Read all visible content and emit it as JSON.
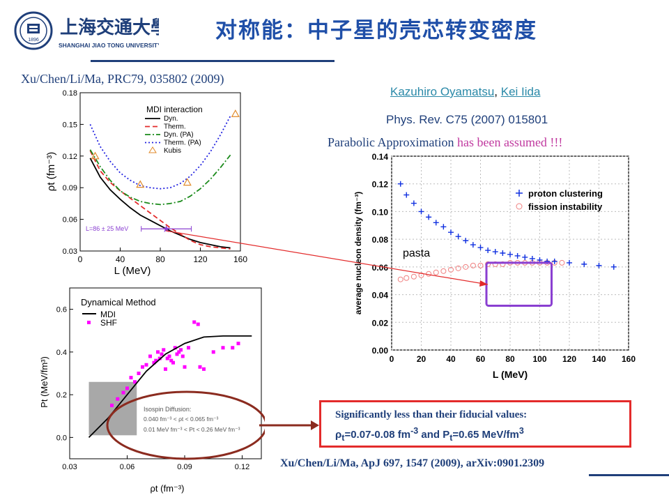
{
  "slide": {
    "title": "对称能：中子星的壳芯转变密度",
    "ref_top": "Xu/Chen/Li/Ma, PRC79, 035802 (2009)",
    "author1": "Kazuhiro Oyamatsu",
    "author_sep": ", ",
    "author2": "Kei Iida",
    "journal": "Phys. Rev. C75 (2007) 015801",
    "parabolic_a": "Parabolic Approximation ",
    "parabolic_b": "has been assumed !!!",
    "callout_l1": "Significantly less than their fiducial values:",
    "callout_l2_rho": "ρ",
    "callout_l2_t": "t",
    "callout_l2_a": "=0.07-0.08 fm",
    "callout_l2_exp": "-3",
    "callout_l2_b": " and P",
    "callout_l2_t2": "t",
    "callout_l2_c": "=0.65 MeV/fm",
    "callout_l2_exp2": "3",
    "ref_bottom": "Xu/Chen/Li/Ma, ApJ 697, 1547 (2009), arXiv:0901.2309",
    "pasta_label": "pasta",
    "logo_cn": "上海交通大學",
    "logo_en": "SHANGHAI JIAO TONG UNIVERSITY",
    "logo_year": "1896"
  },
  "colors": {
    "title": "#1f4fa8",
    "navy": "#1f3f7a",
    "red": "#e32b2b",
    "purple": "#8a3fd1",
    "brown": "#8b2b1f",
    "magenta": "#ff00ff",
    "blue": "#1030e0"
  },
  "chart_data": [
    {
      "type": "line",
      "id": "rho-t-vs-L",
      "xlabel": "L (MeV)",
      "ylabel": "ρt (fm⁻³)",
      "xlim": [
        0,
        160
      ],
      "ylim": [
        0.03,
        0.18
      ],
      "xticks": [
        0,
        40,
        80,
        120,
        160
      ],
      "yticks": [
        0.03,
        0.06,
        0.09,
        0.12,
        0.15,
        0.18
      ],
      "xtick_labels": [
        "0",
        "40",
        "80",
        "120",
        "160"
      ],
      "ytick_labels": [
        "0.03",
        "0.06",
        "0.09",
        "0.12",
        "0.15",
        "0.18"
      ],
      "legend_title": "MDI interaction",
      "legend_position": "top-left",
      "series": [
        {
          "name": "Dyn.",
          "style": "solid",
          "color": "#000000",
          "x": [
            10,
            20,
            30,
            40,
            50,
            60,
            70,
            80,
            90,
            100,
            110,
            120,
            130,
            140,
            150
          ],
          "y": [
            0.118,
            0.1,
            0.088,
            0.079,
            0.071,
            0.064,
            0.059,
            0.054,
            0.049,
            0.045,
            0.041,
            0.038,
            0.036,
            0.034,
            0.033
          ]
        },
        {
          "name": "Therm.",
          "style": "dashed",
          "color": "#e32b2b",
          "x": [
            10,
            20,
            30,
            40,
            50,
            60,
            70,
            80,
            90,
            100,
            110,
            120,
            130,
            140,
            150
          ],
          "y": [
            0.125,
            0.106,
            0.095,
            0.087,
            0.08,
            0.073,
            0.066,
            0.059,
            0.052,
            0.046,
            0.04,
            0.036,
            0.034,
            0.033,
            0.032
          ]
        },
        {
          "name": "Dyn. (PA)",
          "style": "dashdot",
          "color": "#1a8a1a",
          "x": [
            10,
            20,
            30,
            40,
            50,
            60,
            70,
            80,
            90,
            100,
            110,
            120,
            130,
            140,
            150
          ],
          "y": [
            0.126,
            0.11,
            0.097,
            0.087,
            0.081,
            0.077,
            0.075,
            0.074,
            0.075,
            0.077,
            0.082,
            0.089,
            0.098,
            0.109,
            0.121
          ]
        },
        {
          "name": "Therm. (PA)",
          "style": "dotted",
          "color": "#2020e0",
          "x": [
            10,
            20,
            30,
            40,
            50,
            60,
            70,
            80,
            90,
            100,
            110,
            120,
            130,
            140,
            150
          ],
          "y": [
            0.15,
            0.129,
            0.115,
            0.104,
            0.097,
            0.092,
            0.09,
            0.089,
            0.09,
            0.094,
            0.101,
            0.111,
            0.124,
            0.14,
            0.158
          ]
        }
      ],
      "kubis": {
        "name": "Kubis",
        "x": [
          15,
          60,
          107,
          155
        ],
        "y": [
          0.12,
          0.093,
          0.095,
          0.16
        ]
      },
      "star_point": {
        "x": 86,
        "y": 0.051,
        "xerr": 25
      },
      "annotation": "L=86 ± 25 MeV"
    },
    {
      "type": "scatter",
      "id": "density-vs-L",
      "xlabel": "L (MeV)",
      "ylabel": "average nucleon density (fm⁻³)",
      "xlim": [
        0,
        160
      ],
      "ylim": [
        0,
        0.14
      ],
      "xticks": [
        0,
        20,
        40,
        60,
        80,
        100,
        120,
        140,
        160
      ],
      "yticks": [
        0,
        0.02,
        0.04,
        0.06,
        0.08,
        0.1,
        0.12,
        0.14
      ],
      "xtick_labels": [
        "0",
        "20",
        "40",
        "60",
        "80",
        "100",
        "120",
        "140",
        "160"
      ],
      "ytick_labels": [
        "0.00",
        "0.02",
        "0.04",
        "0.06",
        "0.08",
        "0.10",
        "0.12",
        "0.14"
      ],
      "legend_position": "top-right",
      "series": [
        {
          "name": "proton clustering",
          "marker": "+",
          "color": "#1030e0",
          "x": [
            6,
            10,
            15,
            20,
            25,
            30,
            35,
            40,
            45,
            50,
            55,
            60,
            65,
            70,
            75,
            80,
            85,
            90,
            95,
            100,
            105,
            110,
            120,
            130,
            140,
            150
          ],
          "y": [
            0.12,
            0.112,
            0.106,
            0.1,
            0.096,
            0.092,
            0.089,
            0.085,
            0.082,
            0.079,
            0.076,
            0.074,
            0.072,
            0.071,
            0.07,
            0.069,
            0.068,
            0.067,
            0.066,
            0.065,
            0.064,
            0.064,
            0.063,
            0.062,
            0.061,
            0.06
          ]
        },
        {
          "name": "fission instability",
          "marker": "o",
          "color": "#f08080",
          "x": [
            6,
            10,
            15,
            20,
            25,
            30,
            35,
            40,
            45,
            50,
            55,
            60,
            65,
            70,
            75,
            80,
            85,
            90,
            95,
            100,
            105,
            110,
            115
          ],
          "y": [
            0.051,
            0.052,
            0.053,
            0.054,
            0.055,
            0.056,
            0.057,
            0.058,
            0.059,
            0.06,
            0.061,
            0.061,
            0.062,
            0.062,
            0.062,
            0.063,
            0.063,
            0.063,
            0.063,
            0.063,
            0.063,
            0.063,
            0.063
          ]
        }
      ],
      "highlight_box": {
        "x": [
          64,
          108
        ],
        "y": [
          0.032,
          0.063
        ]
      }
    },
    {
      "type": "scatter",
      "id": "Pt-vs-rho-t",
      "xlabel": "ρt (fm⁻³)",
      "ylabel": "Pt (MeV/fm³)",
      "xlim": [
        0.03,
        0.13
      ],
      "ylim": [
        -0.1,
        0.7
      ],
      "xticks": [
        0.03,
        0.06,
        0.09,
        0.12
      ],
      "yticks": [
        0.0,
        0.2,
        0.4,
        0.6
      ],
      "xtick_labels": [
        "0.03",
        "0.06",
        "0.09",
        "0.12"
      ],
      "ytick_labels": [
        "0.0",
        "0.2",
        "0.4",
        "0.6"
      ],
      "legend_title": "Dynamical Method",
      "legend_position": "top-left",
      "mdi_curve": {
        "name": "MDI",
        "x": [
          0.04,
          0.05,
          0.06,
          0.07,
          0.08,
          0.09,
          0.1,
          0.11,
          0.12,
          0.125
        ],
        "y": [
          0.0,
          0.09,
          0.2,
          0.31,
          0.39,
          0.44,
          0.47,
          0.475,
          0.475,
          0.475
        ]
      },
      "shf_points": {
        "name": "SHF",
        "x": [
          0.052,
          0.055,
          0.058,
          0.06,
          0.062,
          0.064,
          0.066,
          0.068,
          0.07,
          0.072,
          0.074,
          0.075,
          0.076,
          0.077,
          0.078,
          0.079,
          0.08,
          0.081,
          0.082,
          0.083,
          0.084,
          0.085,
          0.086,
          0.087,
          0.088,
          0.089,
          0.09,
          0.092,
          0.095,
          0.097,
          0.098,
          0.1,
          0.105,
          0.11,
          0.115,
          0.118
        ],
        "y": [
          0.15,
          0.18,
          0.21,
          0.23,
          0.28,
          0.26,
          0.3,
          0.33,
          0.34,
          0.38,
          0.35,
          0.36,
          0.4,
          0.37,
          0.39,
          0.41,
          0.32,
          0.37,
          0.38,
          0.36,
          0.35,
          0.42,
          0.39,
          0.4,
          0.41,
          0.38,
          0.33,
          0.42,
          0.54,
          0.53,
          0.33,
          0.32,
          0.4,
          0.42,
          0.42,
          0.44
        ]
      },
      "shaded_region": {
        "x": [
          0.04,
          0.065
        ],
        "y": [
          0.01,
          0.26
        ]
      },
      "annotation_title": "Isospin Diffusion:",
      "annotation_l1": "0.040 fm⁻³ < ρt < 0.065 fm⁻³",
      "annotation_l2": "0.01 MeV fm⁻³ < Pt < 0.26 MeV fm⁻³"
    }
  ]
}
